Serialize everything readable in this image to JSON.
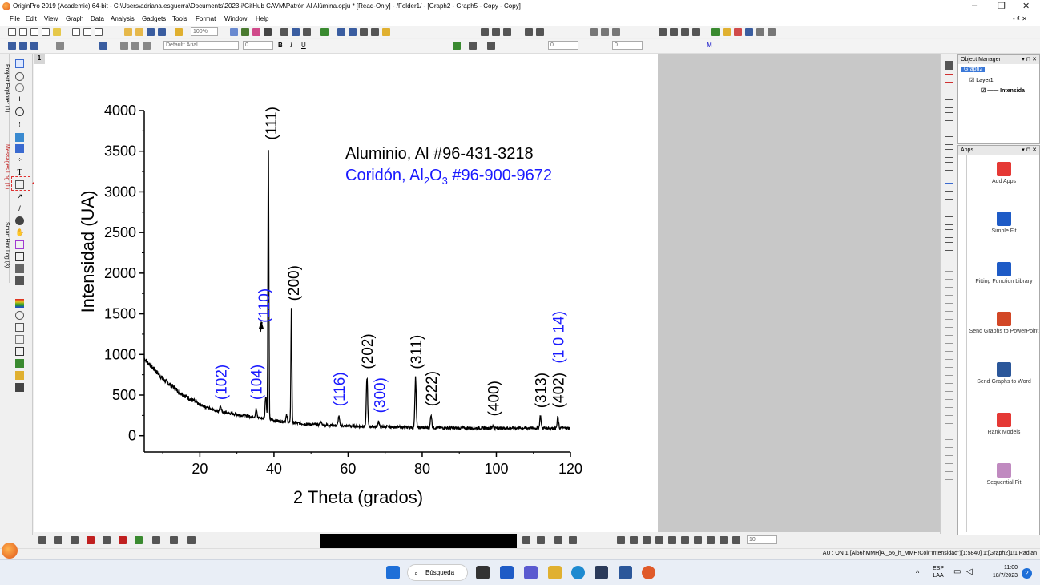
{
  "window": {
    "title": "OriginPro 2019 (Academic) 64-bit - C:\\Users\\adriana.esguerra\\Documents\\2023-i\\GitHub CAVM\\Patrón Al Alúmina.opju * [Read-Only] - /Folder1/ - [Graph2 - Graph5 - Copy - Copy]",
    "controls": [
      "–",
      "❐",
      "✕"
    ],
    "sub_controls": "- ₫ ✕"
  },
  "menu": [
    "File",
    "Edit",
    "View",
    "Graph",
    "Data",
    "Analysis",
    "Gadgets",
    "Tools",
    "Format",
    "Window",
    "Help"
  ],
  "toolbar": {
    "zoom": "100%",
    "font": "Default: Arial",
    "font_size": "0",
    "line_size": "0",
    "other_size": "0",
    "anchor_size": "10"
  },
  "left_tabs": [
    "Project Explorer (1)",
    "Messages Log (1)",
    "Smart Hint Log (3)"
  ],
  "layer_label": "1",
  "object_manager": {
    "header": "Object Manager",
    "tree": [
      "Graph2",
      "Layer1",
      "Intensida"
    ]
  },
  "apps": {
    "header": "Apps",
    "items": [
      {
        "label": "Add Apps",
        "icon": "add-apps-icon",
        "color": "#e53935"
      },
      {
        "label": "Simple Fit",
        "icon": "simple-fit-icon",
        "color": "#1e5bc6"
      },
      {
        "label": "Fitting Function Library",
        "icon": "fitting-function-library-icon",
        "color": "#1e5bc6"
      },
      {
        "label": "Send Graphs to PowerPoint",
        "icon": "powerpoint-icon",
        "color": "#d24726"
      },
      {
        "label": "Send Graphs to Word",
        "icon": "word-icon",
        "color": "#2b579a"
      },
      {
        "label": "Rank Models",
        "icon": "rank-models-icon",
        "color": "#e53935"
      },
      {
        "label": "Sequential Fit",
        "icon": "sequential-fit-icon",
        "color": "#c08ac0"
      }
    ]
  },
  "status": {
    "text": "AU : ON  1:[Al56hMMH]Al_56_h_MMH!Col(\"Intensidad\")[1:5840]  1:[Graph2]1!1  Radian"
  },
  "taskbar": {
    "search": "Búsqueda",
    "lang": "ESP",
    "lang2": "LAA",
    "time": "11:00",
    "date": "18/7/2023",
    "badge": "2"
  },
  "chart_data": {
    "type": "line",
    "xlabel": "2 Theta (grados)",
    "ylabel": "Intensidad (UA)",
    "xlim": [
      5,
      120
    ],
    "ylim": [
      -200,
      4000
    ],
    "x_ticks": [
      20,
      40,
      60,
      80,
      100,
      120
    ],
    "y_ticks": [
      0,
      500,
      1000,
      1500,
      2000,
      2500,
      3000,
      3500,
      4000
    ],
    "legend_lines": [
      {
        "text": "Aluminio, Al #96-431-3218",
        "color": "#000000"
      },
      {
        "text_main": "Coridón, Al",
        "sub1": "2",
        "mid": "O",
        "sub2": "3",
        "rest": " #96-900-9672",
        "color": "#1a1aff"
      }
    ],
    "series": [
      {
        "color": "#000000",
        "baseline": [
          [
            5,
            950
          ],
          [
            10,
            700
          ],
          [
            15,
            520
          ],
          [
            20,
            380
          ],
          [
            25,
            300
          ],
          [
            30,
            260
          ],
          [
            35,
            230
          ],
          [
            40,
            190
          ],
          [
            45,
            160
          ],
          [
            50,
            140
          ],
          [
            55,
            130
          ],
          [
            60,
            120
          ],
          [
            70,
            110
          ],
          [
            80,
            100
          ],
          [
            90,
            95
          ],
          [
            100,
            95
          ],
          [
            110,
            95
          ],
          [
            120,
            95
          ]
        ],
        "peaks": [
          {
            "x": 25.6,
            "y": 370
          },
          {
            "x": 35.2,
            "y": 330
          },
          {
            "x": 37.8,
            "y": 500
          },
          {
            "x": 38.5,
            "y": 3580
          },
          {
            "x": 43.4,
            "y": 250
          },
          {
            "x": 44.7,
            "y": 1580
          },
          {
            "x": 52.6,
            "y": 180
          },
          {
            "x": 57.5,
            "y": 240
          },
          {
            "x": 65.1,
            "y": 720
          },
          {
            "x": 68.2,
            "y": 180
          },
          {
            "x": 78.2,
            "y": 720
          },
          {
            "x": 82.4,
            "y": 260
          },
          {
            "x": 99.1,
            "y": 130
          },
          {
            "x": 111.9,
            "y": 250
          },
          {
            "x": 116.6,
            "y": 230
          }
        ]
      }
    ],
    "annotations": [
      {
        "text": "(102)",
        "x": 25.6,
        "y": 400,
        "color": "#1a1aff"
      },
      {
        "text": "(104)",
        "x": 35.2,
        "y": 400,
        "color": "#1a1aff"
      },
      {
        "text": "(110)",
        "x": 37.2,
        "y": 1350,
        "color": "#1a1aff"
      },
      {
        "text": "(111)",
        "x": 39.2,
        "y": 3600,
        "color": "#000000"
      },
      {
        "text": "(200)",
        "x": 45.2,
        "y": 1620,
        "color": "#000000"
      },
      {
        "text": "(116)",
        "x": 57.5,
        "y": 320,
        "color": "#1a1aff"
      },
      {
        "text": "(202)",
        "x": 65.1,
        "y": 780,
        "color": "#000000"
      },
      {
        "text": "(300)",
        "x": 68.4,
        "y": 240,
        "color": "#1a1aff"
      },
      {
        "text": "(311)",
        "x": 78.3,
        "y": 780,
        "color": "#000000"
      },
      {
        "text": "(222)",
        "x": 82.4,
        "y": 320,
        "color": "#000000"
      },
      {
        "text": "(400)",
        "x": 99.1,
        "y": 200,
        "color": "#000000"
      },
      {
        "text": "(313)",
        "x": 111.9,
        "y": 300,
        "color": "#000000"
      },
      {
        "text": "(402)",
        "x": 116.6,
        "y": 300,
        "color": "#000000"
      },
      {
        "text": "(1 0 14)",
        "x": 116.6,
        "y": 850,
        "color": "#1a1aff"
      }
    ]
  }
}
